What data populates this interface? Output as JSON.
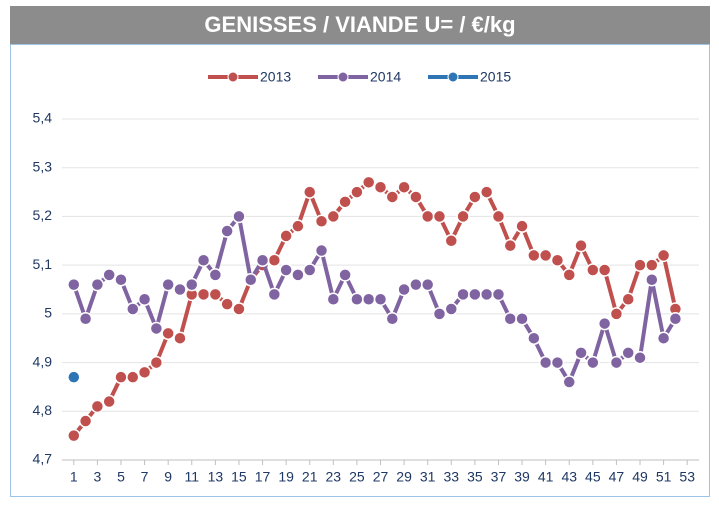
{
  "chart_data": {
    "type": "line",
    "title": "GENISSES / VIANDE U= /  €/kg",
    "x": [
      1,
      2,
      3,
      4,
      5,
      6,
      7,
      8,
      9,
      10,
      11,
      12,
      13,
      14,
      15,
      16,
      17,
      18,
      19,
      20,
      21,
      22,
      23,
      24,
      25,
      26,
      27,
      28,
      29,
      30,
      31,
      32,
      33,
      34,
      35,
      36,
      37,
      38,
      39,
      40,
      41,
      42,
      43,
      44,
      45,
      46,
      47,
      48,
      49,
      50,
      51,
      52
    ],
    "series": [
      {
        "name": "2013",
        "color": "#c0504d",
        "values": [
          4.75,
          4.78,
          4.81,
          4.82,
          4.87,
          4.87,
          4.88,
          4.9,
          4.96,
          4.95,
          5.04,
          5.04,
          5.04,
          5.02,
          5.01,
          5.07,
          5.1,
          5.11,
          5.16,
          5.18,
          5.25,
          5.19,
          5.2,
          5.23,
          5.25,
          5.27,
          5.26,
          5.24,
          5.26,
          5.24,
          5.2,
          5.2,
          5.15,
          5.2,
          5.24,
          5.25,
          5.2,
          5.14,
          5.18,
          5.12,
          5.12,
          5.11,
          5.08,
          5.14,
          5.09,
          5.09,
          5.0,
          5.03,
          5.1,
          5.1,
          5.12,
          5.01
        ]
      },
      {
        "name": "2014",
        "color": "#8064a2",
        "values": [
          5.06,
          4.99,
          5.06,
          5.08,
          5.07,
          5.01,
          5.03,
          4.97,
          5.06,
          5.05,
          5.06,
          5.11,
          5.08,
          5.17,
          5.2,
          5.07,
          5.11,
          5.04,
          5.09,
          5.08,
          5.09,
          5.13,
          5.03,
          5.08,
          5.03,
          5.03,
          5.03,
          4.99,
          5.05,
          5.06,
          5.06,
          5.0,
          5.01,
          5.04,
          5.04,
          5.04,
          5.04,
          4.99,
          4.99,
          4.95,
          4.9,
          4.9,
          4.86,
          4.92,
          4.9,
          4.98,
          4.9,
          4.92,
          4.91,
          5.07,
          4.95,
          4.99
        ]
      },
      {
        "name": "2015",
        "color": "#2e75b6",
        "values": [
          4.87,
          null,
          null,
          null,
          null,
          null,
          null,
          null,
          null,
          null,
          null,
          null,
          null,
          null,
          null,
          null,
          null,
          null,
          null,
          null,
          null,
          null,
          null,
          null,
          null,
          null,
          null,
          null,
          null,
          null,
          null,
          null,
          null,
          null,
          null,
          null,
          null,
          null,
          null,
          null,
          null,
          null,
          null,
          null,
          null,
          null,
          null,
          null,
          null,
          null,
          null,
          null
        ]
      }
    ],
    "xlim": [
      0,
      54
    ],
    "xticks": [
      1,
      3,
      5,
      7,
      9,
      11,
      13,
      15,
      17,
      19,
      21,
      23,
      25,
      27,
      29,
      31,
      33,
      35,
      37,
      39,
      41,
      43,
      45,
      47,
      49,
      51,
      53
    ],
    "ylim": [
      4.7,
      5.4
    ],
    "yticks": [
      {
        "value": 4.7,
        "label": "4,7"
      },
      {
        "value": 4.8,
        "label": "4,8"
      },
      {
        "value": 4.9,
        "label": "4,9"
      },
      5,
      {
        "value": 5.1,
        "label": "5,1"
      },
      {
        "value": 5.2,
        "label": "5,2"
      },
      {
        "value": 5.3,
        "label": "5,3"
      },
      {
        "value": 5.4,
        "label": "5,4"
      }
    ],
    "grid": true,
    "legend": "top"
  }
}
